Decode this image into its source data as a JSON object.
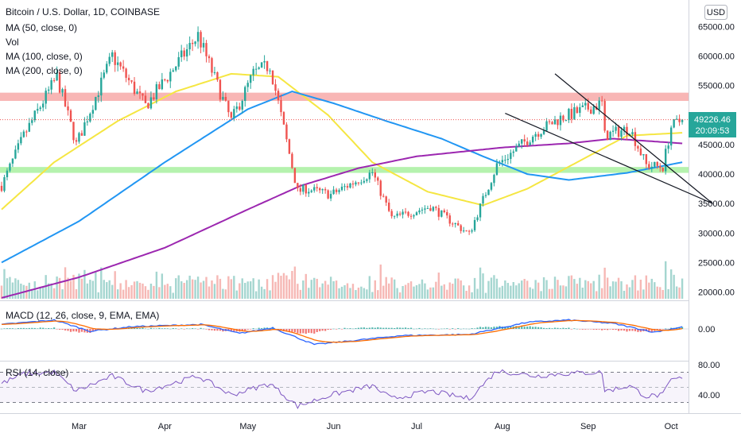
{
  "chart_data": {
    "type": "candlestick",
    "title": "Bitcoin / U.S. Dollar, 1D, COINBASE",
    "currency_button": "USD",
    "indicators": [
      "Vol",
      "MA (50, close, 0)",
      "MA (100, close, 0)",
      "MA (200, close, 0)"
    ],
    "indicator_order": [
      "MA (50, close, 0)",
      "Vol",
      "MA (100, close, 0)",
      "MA (200, close, 0)"
    ],
    "price_axis": {
      "ticks": [
        "65000.00",
        "60000.00",
        "55000.00",
        "50000.00",
        "45000.00",
        "40000.00",
        "35000.00",
        "30000.00",
        "25000.00",
        "20000.00"
      ],
      "ylim": [
        19000,
        67000
      ]
    },
    "x_labels": [
      "Mar",
      "Apr",
      "May",
      "Jun",
      "Jul",
      "Aug",
      "Sep",
      "Oct"
    ],
    "last_price": {
      "value": "49226.46",
      "countdown": "20:09:53",
      "color": "#26a69a"
    },
    "resistance_zone": [
      52400,
      53800
    ],
    "support_zone": [
      40200,
      41200
    ],
    "wedge_lines": [
      {
        "from": [
          "2021-08-20",
          57000
        ],
        "to": [
          "2021-10-16",
          35000
        ]
      },
      {
        "from": [
          "2021-08-02",
          50300
        ],
        "to": [
          "2021-10-16",
          35000
        ]
      }
    ],
    "close_series": {
      "start": "2021-02-01",
      "keypoints": [
        [
          "2021-02-01",
          38000
        ],
        [
          "2021-02-09",
          46500
        ],
        [
          "2021-02-21",
          56500
        ],
        [
          "2021-02-28",
          45000
        ],
        [
          "2021-03-13",
          60000
        ],
        [
          "2021-03-25",
          51500
        ],
        [
          "2021-04-13",
          63500
        ],
        [
          "2021-04-25",
          49000
        ],
        [
          "2021-05-03",
          57000
        ],
        [
          "2021-05-09",
          58500
        ],
        [
          "2021-05-19",
          37000
        ],
        [
          "2021-05-22",
          37500
        ],
        [
          "2021-05-31",
          36500
        ],
        [
          "2021-06-15",
          40300
        ],
        [
          "2021-06-22",
          32500
        ],
        [
          "2021-07-06",
          34500
        ],
        [
          "2021-07-20",
          29800
        ],
        [
          "2021-07-30",
          41500
        ],
        [
          "2021-08-13",
          47000
        ],
        [
          "2021-08-22",
          49500
        ],
        [
          "2021-09-06",
          52000
        ],
        [
          "2021-09-07",
          46500
        ],
        [
          "2021-09-16",
          47800
        ],
        [
          "2021-09-22",
          41500
        ],
        [
          "2021-09-28",
          41200
        ],
        [
          "2021-10-01",
          48000
        ],
        [
          "2021-10-05",
          49226
        ]
      ]
    },
    "moving_averages": [
      {
        "name": "MA (50, close, 0)",
        "color": "#f5e642",
        "points": [
          [
            "2021-02-01",
            34000
          ],
          [
            "2021-02-20",
            42000
          ],
          [
            "2021-03-15",
            49000
          ],
          [
            "2021-04-05",
            54000
          ],
          [
            "2021-04-25",
            57000
          ],
          [
            "2021-05-12",
            56500
          ],
          [
            "2021-05-30",
            50000
          ],
          [
            "2021-06-15",
            42000
          ],
          [
            "2021-07-05",
            37000
          ],
          [
            "2021-07-25",
            34700
          ],
          [
            "2021-08-10",
            37500
          ],
          [
            "2021-08-30",
            42500
          ],
          [
            "2021-09-15",
            46500
          ],
          [
            "2021-10-05",
            47000
          ]
        ]
      },
      {
        "name": "MA (100, close, 0)",
        "color": "#2196f3",
        "points": [
          [
            "2021-02-01",
            25000
          ],
          [
            "2021-03-01",
            32000
          ],
          [
            "2021-04-01",
            42000
          ],
          [
            "2021-05-01",
            51000
          ],
          [
            "2021-05-17",
            54000
          ],
          [
            "2021-06-01",
            52000
          ],
          [
            "2021-06-20",
            49000
          ],
          [
            "2021-07-10",
            46000
          ],
          [
            "2021-07-25",
            43000
          ],
          [
            "2021-08-10",
            40000
          ],
          [
            "2021-08-25",
            39000
          ],
          [
            "2021-09-15",
            40200
          ],
          [
            "2021-10-05",
            42000
          ]
        ]
      },
      {
        "name": "MA (200, close, 0)",
        "color": "#9c27b0",
        "points": [
          [
            "2021-02-01",
            19000
          ],
          [
            "2021-03-01",
            22500
          ],
          [
            "2021-04-01",
            27500
          ],
          [
            "2021-05-01",
            34000
          ],
          [
            "2021-05-20",
            38000
          ],
          [
            "2021-06-10",
            41000
          ],
          [
            "2021-07-01",
            43000
          ],
          [
            "2021-08-01",
            44500
          ],
          [
            "2021-08-25",
            45200
          ],
          [
            "2021-09-10",
            46000
          ],
          [
            "2021-10-05",
            45200
          ]
        ]
      }
    ],
    "macd": {
      "label": "MACD (12, 26, close, 9, EMA, EMA)",
      "ticks": [
        "0.00"
      ],
      "line_color": "#2962ff",
      "signal_color": "#ff6d00",
      "keypoints": [
        [
          "2021-02-01",
          2
        ],
        [
          "2021-02-20",
          4
        ],
        [
          "2021-03-05",
          -1
        ],
        [
          "2021-03-20",
          1
        ],
        [
          "2021-04-14",
          2
        ],
        [
          "2021-04-28",
          -2
        ],
        [
          "2021-05-10",
          0.5
        ],
        [
          "2021-05-25",
          -7
        ],
        [
          "2021-06-10",
          -5
        ],
        [
          "2021-06-25",
          -3
        ],
        [
          "2021-07-20",
          -2.5
        ],
        [
          "2021-08-10",
          3
        ],
        [
          "2021-08-25",
          4
        ],
        [
          "2021-09-10",
          2.5
        ],
        [
          "2021-09-25",
          -1.5
        ],
        [
          "2021-10-05",
          1
        ]
      ]
    },
    "rsi": {
      "label": "RSI (14, close)",
      "ticks": [
        "80.00",
        "40.00"
      ],
      "line_color": "#7e57c2",
      "bands": [
        30,
        70
      ],
      "keypoints": [
        [
          "2021-02-01",
          55
        ],
        [
          "2021-02-09",
          68
        ],
        [
          "2021-02-20",
          70
        ],
        [
          "2021-02-28",
          45
        ],
        [
          "2021-03-13",
          65
        ],
        [
          "2021-03-25",
          45
        ],
        [
          "2021-04-13",
          65
        ],
        [
          "2021-04-25",
          40
        ],
        [
          "2021-05-09",
          55
        ],
        [
          "2021-05-19",
          25
        ],
        [
          "2021-05-31",
          40
        ],
        [
          "2021-06-15",
          52
        ],
        [
          "2021-06-22",
          35
        ],
        [
          "2021-07-06",
          45
        ],
        [
          "2021-07-20",
          35
        ],
        [
          "2021-07-30",
          72
        ],
        [
          "2021-08-13",
          65
        ],
        [
          "2021-08-22",
          68
        ],
        [
          "2021-09-06",
          70
        ],
        [
          "2021-09-07",
          45
        ],
        [
          "2021-09-16",
          52
        ],
        [
          "2021-09-22",
          38
        ],
        [
          "2021-09-28",
          40
        ],
        [
          "2021-10-01",
          60
        ],
        [
          "2021-10-05",
          62
        ]
      ]
    },
    "volume_panel": {
      "bull_color": "#a5d6d0",
      "bear_color": "#f6b8b5"
    },
    "candle_colors": {
      "up": "#26a69a",
      "down": "#ef5350"
    }
  }
}
